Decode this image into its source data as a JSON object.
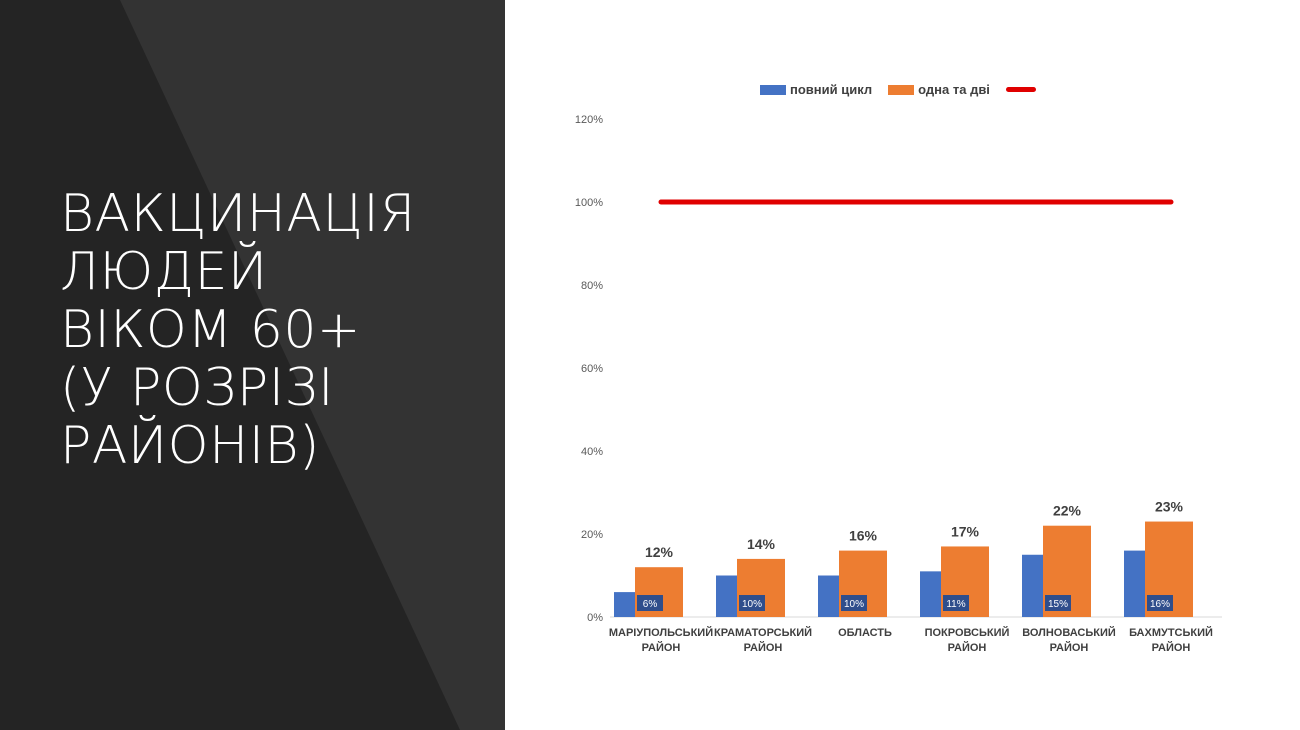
{
  "slide": {
    "title_lines": [
      "ВАКЦИНАЦІЯ",
      "ЛЮДЕЙ",
      "ВІКОМ 60+",
      "(У РОЗРІЗІ",
      "РАЙОНІВ)"
    ]
  },
  "colors": {
    "background_dark": "#242424",
    "background_accent": "#333333",
    "series_full": "#4472C4",
    "series_partial": "#ED7D31",
    "target_line": "#E00000"
  },
  "chart_data": {
    "type": "bar",
    "categories": [
      [
        "МАРІУПОЛЬСЬКИЙ",
        "РАЙОН"
      ],
      [
        "КРАМАТОРСЬКИЙ",
        "РАЙОН"
      ],
      [
        "ОБЛАСТЬ"
      ],
      [
        "ПОКРОВСЬКИЙ",
        "РАЙОН"
      ],
      [
        "ВОЛНОВАСЬКИЙ",
        "РАЙОН"
      ],
      [
        "БАХМУТСЬКИЙ",
        "РАЙОН"
      ]
    ],
    "series": [
      {
        "name": "повний цикл",
        "type": "bar",
        "values": [
          6,
          10,
          10,
          11,
          15,
          16
        ],
        "labels": [
          "6%",
          "10%",
          "10%",
          "11%",
          "15%",
          "16%"
        ]
      },
      {
        "name": "одна та дві",
        "type": "bar",
        "values": [
          12,
          14,
          16,
          17,
          22,
          23
        ],
        "labels": [
          "12%",
          "14%",
          "16%",
          "17%",
          "22%",
          "23%"
        ]
      },
      {
        "name": "",
        "type": "line",
        "values": [
          100,
          100,
          100,
          100,
          100,
          100
        ]
      }
    ],
    "ylim": [
      0,
      120
    ],
    "yticks": [
      0,
      20,
      40,
      60,
      80,
      100,
      120
    ],
    "ytick_labels": [
      "0%",
      "20%",
      "40%",
      "60%",
      "80%",
      "100%",
      "120%"
    ],
    "legend_position": "top",
    "grid": false
  }
}
